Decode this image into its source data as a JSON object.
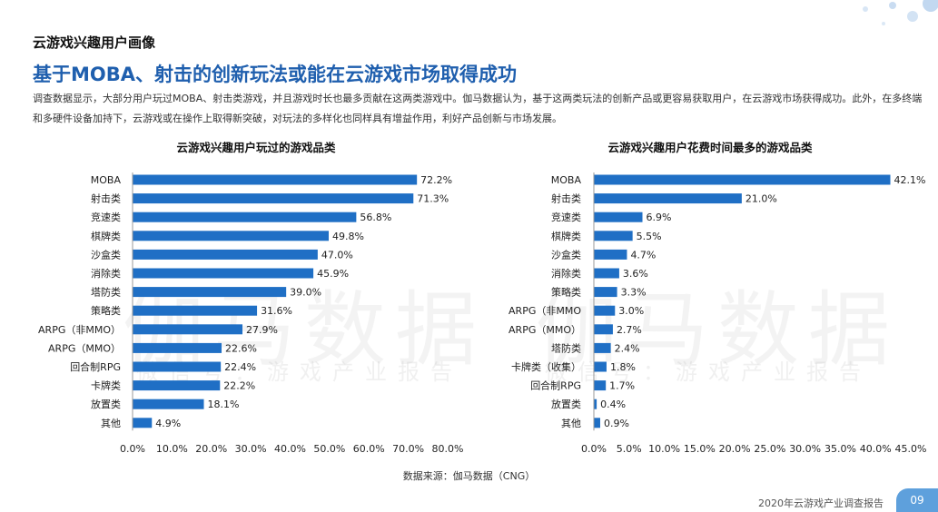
{
  "header": {
    "section": "云游戏兴趣用户画像",
    "headline": "基于MOBA、射击的创新玩法或能在云游戏市场取得成功",
    "intro": "调查数据显示，大部分用户玩过MOBA、射击类游戏，并且游戏时长也最多贡献在这两类游戏中。伽马数据认为，基于这两类玩法的创新产品或更容易获取用户，在云游戏市场获得成功。此外，在多终端和多硬件设备加持下，云游戏或在操作上取得新突破，对玩法的多样化也同样具有增益作用，利好产品创新与市场发展。"
  },
  "watermark": {
    "main": "伽马数据",
    "sub": "微信号：游戏产业报告"
  },
  "chart_data": [
    {
      "type": "bar",
      "orientation": "horizontal",
      "title": "云游戏兴趣用户玩过的游戏品类",
      "categories": [
        "MOBA",
        "射击类",
        "竞速类",
        "棋牌类",
        "沙盒类",
        "消除类",
        "塔防类",
        "策略类",
        "ARPG（非MMO）",
        "ARPG（MMO）",
        "回合制RPG",
        "卡牌类",
        "放置类",
        "其他"
      ],
      "values": [
        72.2,
        71.3,
        56.8,
        49.8,
        47.0,
        45.9,
        39.0,
        31.6,
        27.9,
        22.6,
        22.4,
        22.2,
        18.1,
        4.9
      ],
      "value_labels": [
        "72.2%",
        "71.3%",
        "56.8%",
        "49.8%",
        "47.0%",
        "45.9%",
        "39.0%",
        "31.6%",
        "27.9%",
        "22.6%",
        "22.4%",
        "22.2%",
        "18.1%",
        "4.9%"
      ],
      "xlim": [
        0,
        80
      ],
      "ticks": [
        "0.0%",
        "10.0%",
        "20.0%",
        "30.0%",
        "40.0%",
        "50.0%",
        "60.0%",
        "70.0%",
        "80.0%"
      ],
      "color": "#1f6fc5"
    },
    {
      "type": "bar",
      "orientation": "horizontal",
      "title": "云游戏兴趣用户花费时间最多的游戏品类",
      "categories": [
        "MOBA",
        "射击类",
        "竞速类",
        "棋牌类",
        "沙盒类",
        "消除类",
        "策略类",
        "ARPG（非MMO",
        "ARPG（MMO）",
        "塔防类",
        "卡牌类（收集）",
        "回合制RPG",
        "放置类",
        "其他"
      ],
      "values": [
        42.1,
        21.0,
        6.9,
        5.5,
        4.7,
        3.6,
        3.3,
        3.0,
        2.7,
        2.4,
        1.8,
        1.7,
        0.4,
        0.9
      ],
      "value_labels": [
        "42.1%",
        "21.0%",
        "6.9%",
        "5.5%",
        "4.7%",
        "3.6%",
        "3.3%",
        "3.0%",
        "2.7%",
        "2.4%",
        "1.8%",
        "1.7%",
        "0.4%",
        "0.9%"
      ],
      "xlim": [
        0,
        45
      ],
      "ticks": [
        "0.0%",
        "5.0%",
        "10.0%",
        "15.0%",
        "20.0%",
        "25.0%",
        "30.0%",
        "35.0%",
        "40.0%",
        "45.0%"
      ],
      "color": "#1f6fc5"
    }
  ],
  "footer": {
    "source": "数据来源：伽马数据（CNG）",
    "report_title": "2020年云游戏产业调查报告",
    "page_number": "09"
  }
}
